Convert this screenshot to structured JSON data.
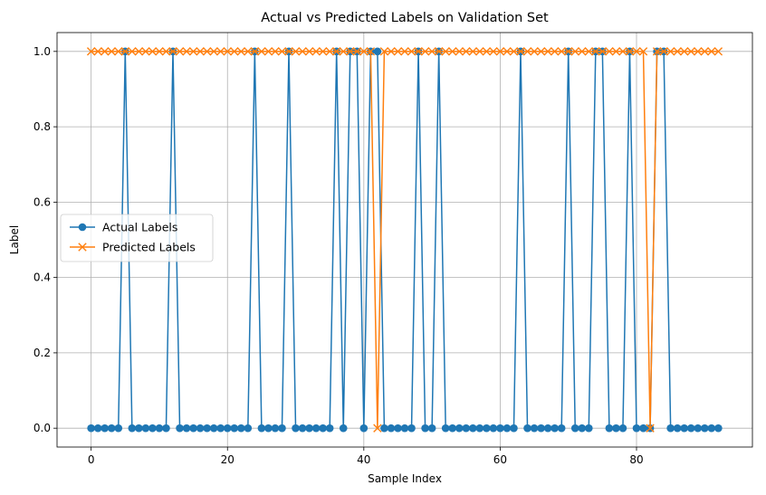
{
  "chart_data": {
    "type": "line",
    "title": "Actual vs Predicted Labels on Validation Set",
    "xlabel": "Sample Index",
    "ylabel": "Label",
    "xlim": [
      -5,
      97
    ],
    "ylim": [
      -0.05,
      1.05
    ],
    "xticks": [
      0,
      20,
      40,
      60,
      80
    ],
    "xtick_labels": [
      "0",
      "20",
      "40",
      "60",
      "80"
    ],
    "yticks": [
      0.0,
      0.2,
      0.4,
      0.6,
      0.8,
      1.0
    ],
    "ytick_labels": [
      "0.0",
      "0.2",
      "0.4",
      "0.6",
      "0.8",
      "1.0"
    ],
    "grid": true,
    "legend_position": "center-left",
    "x": [
      0,
      1,
      2,
      3,
      4,
      5,
      6,
      7,
      8,
      9,
      10,
      11,
      12,
      13,
      14,
      15,
      16,
      17,
      18,
      19,
      20,
      21,
      22,
      23,
      24,
      25,
      26,
      27,
      28,
      29,
      30,
      31,
      32,
      33,
      34,
      35,
      36,
      37,
      38,
      39,
      40,
      41,
      42,
      43,
      44,
      45,
      46,
      47,
      48,
      49,
      50,
      51,
      52,
      53,
      54,
      55,
      56,
      57,
      58,
      59,
      60,
      61,
      62,
      63,
      64,
      65,
      66,
      67,
      68,
      69,
      70,
      71,
      72,
      73,
      74,
      75,
      76,
      77,
      78,
      79,
      80,
      81,
      82,
      83,
      84,
      85,
      86,
      87,
      88,
      89,
      90,
      91,
      92
    ],
    "series": [
      {
        "name": "Actual Labels",
        "color": "#1f77b4",
        "marker": "circle",
        "values": [
          0,
          0,
          0,
          0,
          0,
          1,
          0,
          0,
          0,
          0,
          0,
          0,
          1,
          0,
          0,
          0,
          0,
          0,
          0,
          0,
          0,
          0,
          0,
          0,
          1,
          0,
          0,
          0,
          0,
          1,
          0,
          0,
          0,
          0,
          0,
          0,
          1,
          0,
          1,
          1,
          0,
          1,
          1,
          0,
          0,
          0,
          0,
          0,
          1,
          0,
          0,
          1,
          0,
          0,
          0,
          0,
          0,
          0,
          0,
          0,
          0,
          0,
          0,
          1,
          0,
          0,
          0,
          0,
          0,
          0,
          1,
          0,
          0,
          0,
          1,
          1,
          0,
          0,
          0,
          1,
          0,
          0,
          0,
          1,
          1,
          0,
          0,
          0,
          0,
          0,
          0,
          0,
          0
        ]
      },
      {
        "name": "Predicted Labels",
        "color": "#ff7f0e",
        "marker": "x",
        "values": [
          1,
          1,
          1,
          1,
          1,
          1,
          1,
          1,
          1,
          1,
          1,
          1,
          1,
          1,
          1,
          1,
          1,
          1,
          1,
          1,
          1,
          1,
          1,
          1,
          1,
          1,
          1,
          1,
          1,
          1,
          1,
          1,
          1,
          1,
          1,
          1,
          1,
          1,
          1,
          1,
          1,
          1,
          0,
          1,
          1,
          1,
          1,
          1,
          1,
          1,
          1,
          1,
          1,
          1,
          1,
          1,
          1,
          1,
          1,
          1,
          1,
          1,
          1,
          1,
          1,
          1,
          1,
          1,
          1,
          1,
          1,
          1,
          1,
          1,
          1,
          1,
          1,
          1,
          1,
          1,
          1,
          1,
          0,
          1,
          1,
          1,
          1,
          1,
          1,
          1,
          1,
          1,
          1
        ]
      }
    ]
  }
}
